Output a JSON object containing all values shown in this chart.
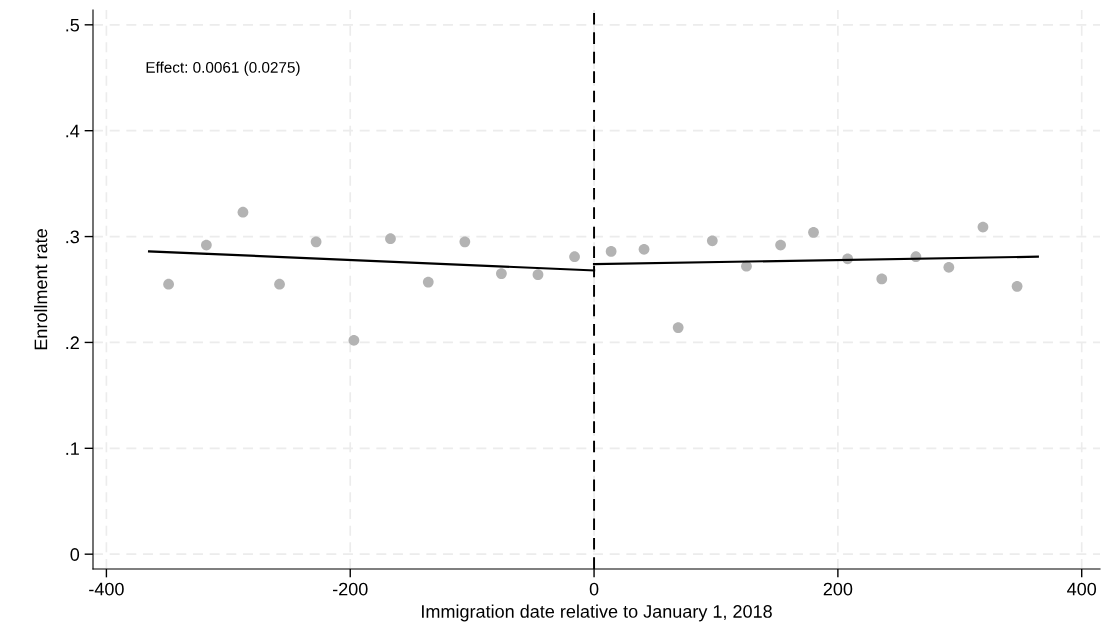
{
  "chart_data": {
    "type": "scatter",
    "xlabel": "Immigration date relative to January 1, 2018",
    "ylabel": "Enrollment rate",
    "annotations": [
      "Effect: 0.0061 (0.0275)"
    ],
    "xlim": [
      -411,
      415
    ],
    "xticks": [
      -400,
      -200,
      0,
      200,
      400
    ],
    "ylim": [
      -0.014,
      0.514
    ],
    "yticks": [
      {
        "value": 0,
        "label": "0"
      },
      {
        "value": 0.1,
        "label": ".1"
      },
      {
        "value": 0.2,
        "label": ".2"
      },
      {
        "value": 0.3,
        "label": ".3"
      },
      {
        "value": 0.4,
        "label": ".4"
      },
      {
        "value": 0.5,
        "label": ".5"
      }
    ],
    "grid": true,
    "marker": "circle",
    "ref_lines": [
      {
        "axis": "x",
        "value": 0,
        "color": "#000000",
        "line_style": "dashed"
      }
    ],
    "series": [
      {
        "color": "#b3b3b3",
        "x": [
          -349,
          -318,
          -288,
          -258,
          -228,
          -197,
          -167,
          -136,
          -106,
          -76,
          -46,
          -16,
          14,
          41,
          69,
          97,
          125,
          153,
          180,
          208,
          236,
          264,
          291,
          319,
          347
        ],
        "values": [
          0.255,
          0.292,
          0.323,
          0.255,
          0.295,
          0.202,
          0.298,
          0.257,
          0.295,
          0.265,
          0.264,
          0.281,
          0.286,
          0.288,
          0.214,
          0.296,
          0.272,
          0.292,
          0.304,
          0.279,
          0.26,
          0.281,
          0.271,
          0.309,
          0.253
        ]
      },
      {
        "type": "line",
        "color": "#000000",
        "marker": "none",
        "x": [
          -365,
          0
        ],
        "values": [
          0.286,
          0.268
        ]
      },
      {
        "type": "line",
        "color": "#000000",
        "marker": "none",
        "x": [
          0,
          364
        ],
        "values": [
          0.274,
          0.281
        ]
      }
    ]
  }
}
